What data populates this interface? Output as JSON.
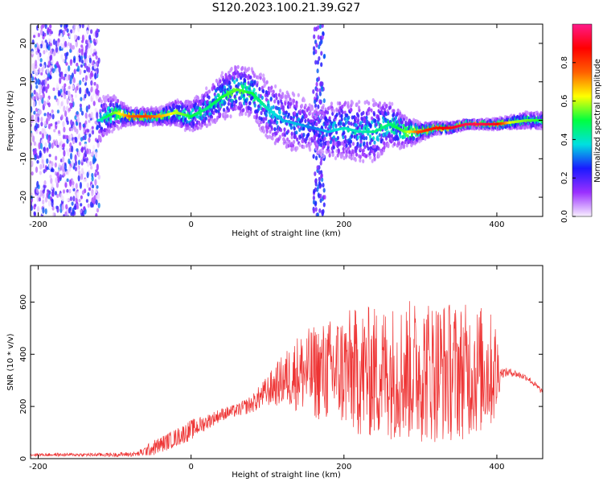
{
  "title": "S120.2023.100.21.39.G27",
  "chart_data": [
    {
      "type": "heatmap",
      "title": "S120.2023.100.21.39.G27",
      "xlabel": "Height of straight line (km)",
      "ylabel": "Frequency (Hz)",
      "xlim": [
        -210,
        460
      ],
      "ylim": [
        -25,
        25
      ],
      "xticks": [
        -200,
        0,
        200,
        400
      ],
      "yticks": [
        -20,
        -10,
        0,
        10,
        20
      ],
      "colorbar": {
        "label": "Normalized spectral amplitude",
        "range": [
          0,
          1
        ],
        "ticks": [
          "0.0",
          "0.2",
          "0.4",
          "0.6",
          "0.8"
        ],
        "tick_values": [
          0,
          0.2,
          0.4,
          0.6,
          0.8
        ],
        "colors": [
          "#f8f0ff",
          "#9b30ff",
          "#1a1aff",
          "#00e0e0",
          "#00ff40",
          "#ffff00",
          "#ff6000",
          "#ff0000",
          "#ff1a8a"
        ]
      },
      "ridge": {
        "x": [
          -120,
          -100,
          -80,
          -60,
          -40,
          -20,
          0,
          20,
          40,
          60,
          80,
          100,
          120,
          140,
          160,
          180,
          200,
          220,
          240,
          260,
          280,
          300,
          320,
          340,
          360,
          380,
          400,
          420,
          440,
          460
        ],
        "freq": [
          0,
          2,
          1,
          1,
          1,
          2,
          1,
          3,
          6,
          8,
          7,
          3,
          0,
          -1,
          -2,
          -3,
          -2,
          -3,
          -3,
          -1,
          -3,
          -3,
          -2,
          -2,
          -1,
          -1,
          -1,
          -0.5,
          0,
          0
        ],
        "spread": [
          3,
          2,
          1,
          1,
          1,
          1.5,
          2,
          2.5,
          3,
          3,
          3,
          4,
          4,
          4,
          3,
          4,
          4,
          4,
          4,
          3,
          2,
          1,
          0.7,
          0.6,
          0.5,
          0.5,
          0.6,
          0.8,
          1,
          1
        ],
        "peak": [
          0.4,
          0.55,
          0.75,
          0.8,
          0.7,
          0.6,
          0.5,
          0.45,
          0.5,
          0.55,
          0.5,
          0.4,
          0.35,
          0.35,
          0.3,
          0.35,
          0.4,
          0.4,
          0.45,
          0.45,
          0.55,
          0.8,
          0.85,
          0.9,
          0.95,
          0.95,
          0.9,
          0.6,
          0.55,
          0.5
        ]
      },
      "noise_band_x": [
        -210,
        -120
      ],
      "vertical_streak_x": [
        160,
        175
      ]
    },
    {
      "type": "line",
      "xlabel": "Height of straight line (km)",
      "ylabel": "SNR (10 * v/v)",
      "xlim": [
        -210,
        460
      ],
      "ylim": [
        0,
        740
      ],
      "xticks": [
        -200,
        0,
        200,
        400
      ],
      "yticks": [
        0,
        200,
        400,
        600
      ],
      "color": "#ee3333",
      "envelope": {
        "x": [
          -210,
          -150,
          -100,
          -70,
          -50,
          -20,
          0,
          20,
          40,
          60,
          80,
          100,
          120,
          140,
          160,
          180,
          200,
          220,
          240,
          260,
          280,
          300,
          320,
          340,
          360,
          380,
          390,
          400,
          405,
          420,
          440,
          460
        ],
        "mean": [
          15,
          15,
          15,
          18,
          40,
          80,
          110,
          140,
          170,
          185,
          210,
          260,
          300,
          330,
          330,
          335,
          340,
          330,
          330,
          335,
          335,
          340,
          340,
          335,
          335,
          340,
          340,
          330,
          330,
          330,
          310,
          255
        ],
        "amp": [
          6,
          6,
          8,
          10,
          30,
          35,
          40,
          30,
          25,
          25,
          35,
          60,
          100,
          150,
          180,
          200,
          230,
          250,
          260,
          260,
          270,
          280,
          280,
          270,
          260,
          250,
          230,
          200,
          20,
          15,
          12,
          12
        ]
      }
    }
  ]
}
